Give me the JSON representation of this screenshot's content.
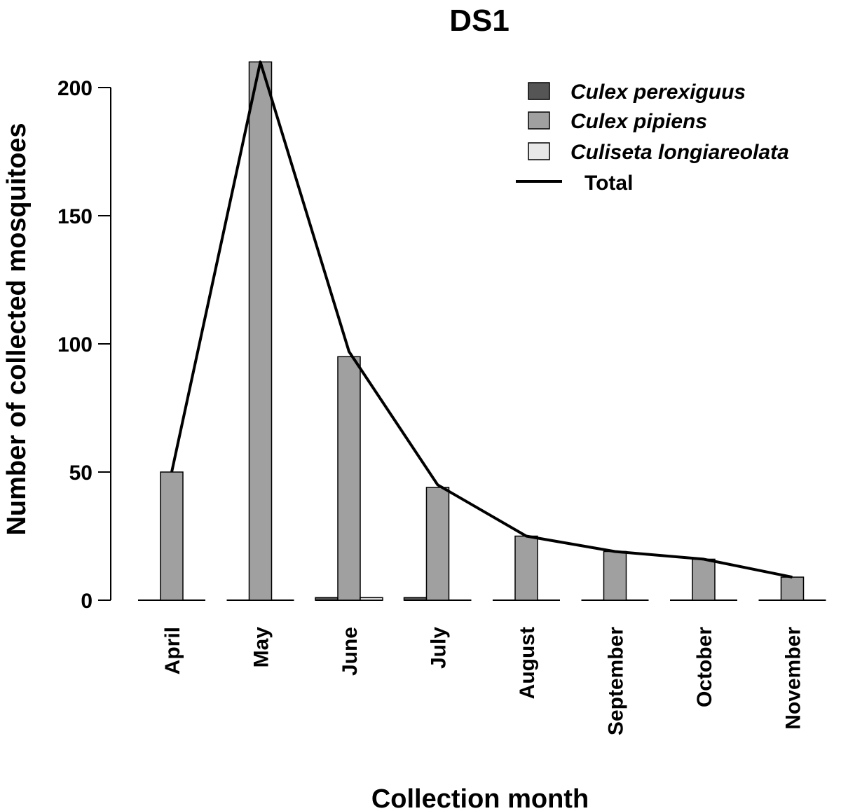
{
  "chart_data": {
    "type": "bar",
    "title": "DS1",
    "xlabel": "Collection month",
    "ylabel": "Number of collected mosquitoes",
    "categories": [
      "April",
      "May",
      "June",
      "July",
      "August",
      "September",
      "October",
      "November"
    ],
    "ylim": [
      0,
      215
    ],
    "yticks": [
      "0",
      "50",
      "100",
      "150",
      "200"
    ],
    "grid": false,
    "legend_position": "top-right",
    "series": [
      {
        "name": "Culex perexiguus",
        "color": "#555555",
        "values": [
          0,
          0,
          1,
          1,
          0,
          0,
          0,
          0
        ]
      },
      {
        "name": "Culex pipiens",
        "color": "#a0a0a0",
        "values": [
          50,
          210,
          95,
          44,
          25,
          19,
          16,
          9
        ]
      },
      {
        "name": "Culiseta longiareolata",
        "color": "#e8e8e8",
        "values": [
          0,
          0,
          1,
          0,
          0,
          0,
          0,
          0
        ]
      }
    ],
    "line": {
      "name": "Total",
      "color": "#000000",
      "values": [
        50,
        210,
        97,
        45,
        25,
        19,
        16,
        9
      ]
    }
  }
}
